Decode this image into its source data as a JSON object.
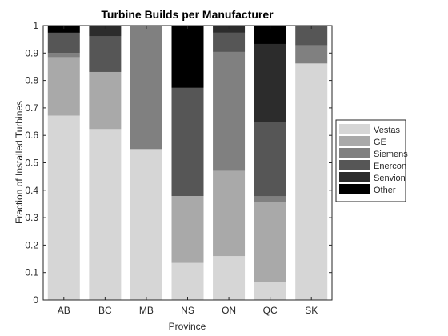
{
  "chart_data": {
    "type": "bar",
    "stacked": true,
    "title": "Turbine Builds per Manufacturer",
    "xlabel": "Province",
    "ylabel": "Fraction of Installed Turbines",
    "ylim": [
      0,
      1
    ],
    "yticks": [
      "0",
      "0.1",
      "0.2",
      "0.3",
      "0.4",
      "0.5",
      "0.6",
      "0.7",
      "0.8",
      "0.9",
      "1"
    ],
    "grid": false,
    "legend_position": "right",
    "categories": [
      "AB",
      "BC",
      "MB",
      "NS",
      "ON",
      "QC",
      "SK"
    ],
    "series": [
      {
        "name": "Vestas",
        "color": "#d6d6d6",
        "values": [
          0.672,
          0.623,
          0.55,
          0.135,
          0.16,
          0.065,
          0.862
        ]
      },
      {
        "name": "GE",
        "color": "#a9a9a9",
        "values": [
          0.213,
          0.208,
          0.0,
          0.244,
          0.311,
          0.291,
          0.0
        ]
      },
      {
        "name": "Siemens",
        "color": "#808080",
        "values": [
          0.015,
          0.0,
          0.45,
          0.0,
          0.433,
          0.022,
          0.066
        ]
      },
      {
        "name": "Enercon",
        "color": "#565656",
        "values": [
          0.074,
          0.13,
          0.0,
          0.394,
          0.07,
          0.27,
          0.072
        ]
      },
      {
        "name": "Senvion",
        "color": "#2c2c2c",
        "values": [
          0.0,
          0.039,
          0.0,
          0.0,
          0.026,
          0.285,
          0.0
        ]
      },
      {
        "name": "Other",
        "color": "#000000",
        "values": [
          0.026,
          0.0,
          0.0,
          0.227,
          0.0,
          0.067,
          0.0
        ]
      }
    ]
  }
}
